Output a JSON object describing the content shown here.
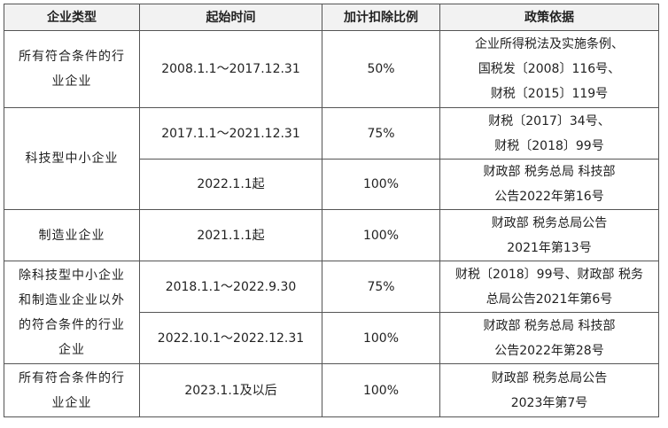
{
  "table": {
    "headers": [
      "企业类型",
      "起始时间",
      "加计扣除比例",
      "政策依据"
    ],
    "rows": [
      {
        "type_lines": [
          "所有符合条件的行",
          "业企业"
        ],
        "start": "2008.1.1～2017.12.31",
        "ratio": "50%",
        "basis_lines": [
          "企业所得税法及实施条例、",
          "国税发〔2008〕116号、",
          "财税〔2015〕119号"
        ]
      },
      {
        "type_lines": [
          "科技型中小企业"
        ],
        "start": "2017.1.1～2021.12.31",
        "ratio": "75%",
        "basis_lines": [
          "财税〔2017〕34号、",
          "财税〔2018〕99号"
        ]
      },
      {
        "start": "2022.1.1起",
        "ratio": "100%",
        "basis_lines": [
          "财政部 税务总局 科技部",
          "公告2022年第16号"
        ]
      },
      {
        "type_lines": [
          "制造业企业"
        ],
        "start": "2021.1.1起",
        "ratio": "100%",
        "basis_lines": [
          "财政部 税务总局公告",
          "2021年第13号"
        ]
      },
      {
        "type_lines": [
          "除科技型中小企业",
          "和制造业企业以外",
          "的符合条件的行业",
          "企业"
        ],
        "start": "2018.1.1～2022.9.30",
        "ratio": "75%",
        "basis_lines": [
          "财税〔2018〕99号、财政部 税务",
          "总局公告2021年第6号"
        ]
      },
      {
        "start": "2022.10.1～2022.12.31",
        "ratio": "100%",
        "basis_lines": [
          "财政部 税务总局 科技部",
          "公告2022年第28号"
        ]
      },
      {
        "type_lines": [
          "所有符合条件的行",
          "业企业"
        ],
        "start": "2023.1.1及以后",
        "ratio": "100%",
        "basis_lines": [
          "财政部 税务总局公告",
          "2023年第7号"
        ]
      }
    ]
  }
}
